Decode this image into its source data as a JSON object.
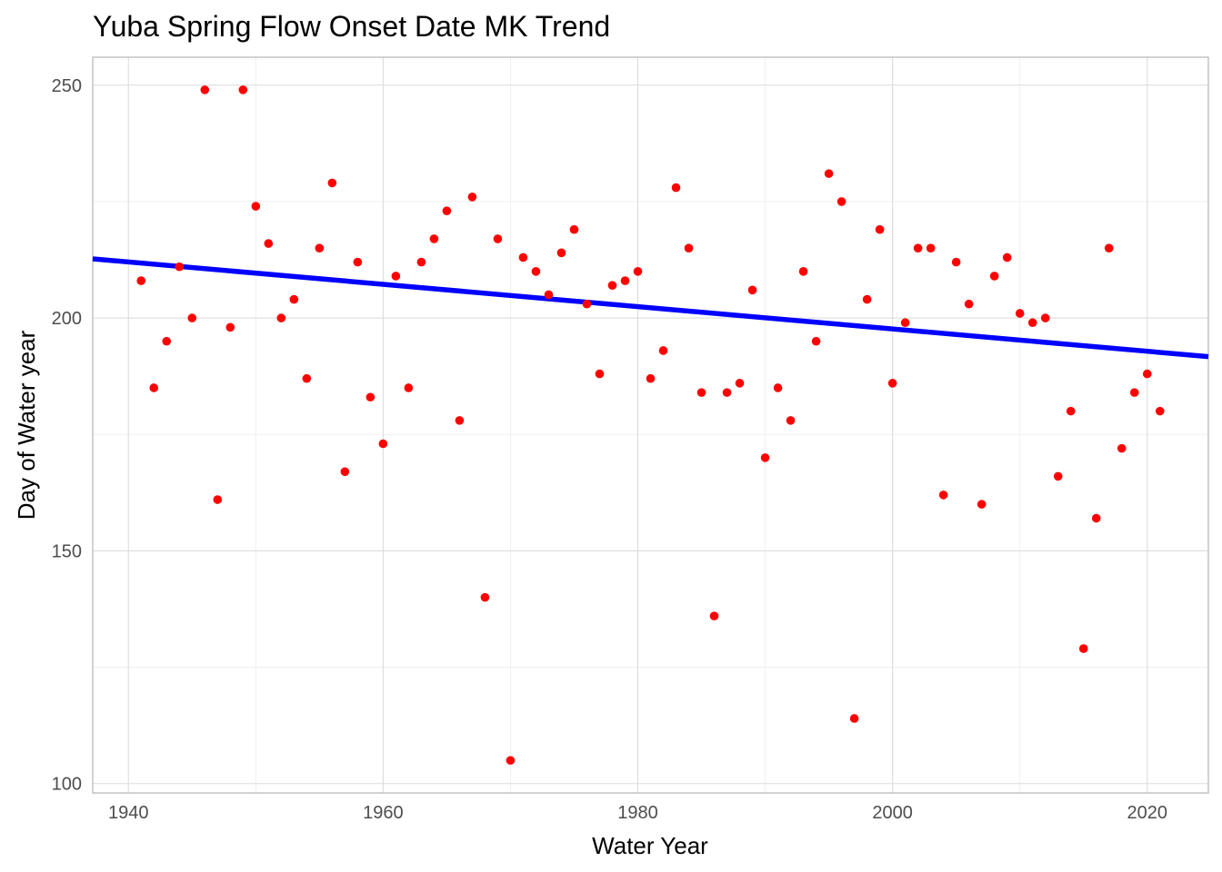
{
  "chart_data": {
    "type": "scatter",
    "title": "Yuba Spring Flow Onset Date MK Trend",
    "xlabel": "Water Year",
    "ylabel": "Day of Water year",
    "xlim": [
      1937.2,
      2024.8
    ],
    "ylim": [
      98,
      256
    ],
    "x_ticks": [
      1940,
      1960,
      1980,
      2000,
      2020
    ],
    "y_ticks": [
      100,
      150,
      200,
      250
    ],
    "grid": true,
    "point_color": "#ff0000",
    "trend_color": "#0000ff",
    "points": [
      {
        "x": 1941,
        "y": 208
      },
      {
        "x": 1942,
        "y": 185
      },
      {
        "x": 1943,
        "y": 195
      },
      {
        "x": 1944,
        "y": 211
      },
      {
        "x": 1945,
        "y": 200
      },
      {
        "x": 1946,
        "y": 249
      },
      {
        "x": 1947,
        "y": 161
      },
      {
        "x": 1948,
        "y": 198
      },
      {
        "x": 1949,
        "y": 249
      },
      {
        "x": 1950,
        "y": 224
      },
      {
        "x": 1951,
        "y": 216
      },
      {
        "x": 1952,
        "y": 200
      },
      {
        "x": 1953,
        "y": 204
      },
      {
        "x": 1954,
        "y": 187
      },
      {
        "x": 1955,
        "y": 215
      },
      {
        "x": 1956,
        "y": 229
      },
      {
        "x": 1957,
        "y": 167
      },
      {
        "x": 1958,
        "y": 212
      },
      {
        "x": 1959,
        "y": 183
      },
      {
        "x": 1960,
        "y": 173
      },
      {
        "x": 1961,
        "y": 209
      },
      {
        "x": 1962,
        "y": 185
      },
      {
        "x": 1963,
        "y": 212
      },
      {
        "x": 1964,
        "y": 217
      },
      {
        "x": 1965,
        "y": 223
      },
      {
        "x": 1966,
        "y": 178
      },
      {
        "x": 1967,
        "y": 226
      },
      {
        "x": 1968,
        "y": 140
      },
      {
        "x": 1969,
        "y": 217
      },
      {
        "x": 1970,
        "y": 105
      },
      {
        "x": 1971,
        "y": 213
      },
      {
        "x": 1972,
        "y": 210
      },
      {
        "x": 1973,
        "y": 205
      },
      {
        "x": 1974,
        "y": 214
      },
      {
        "x": 1975,
        "y": 219
      },
      {
        "x": 1976,
        "y": 203
      },
      {
        "x": 1977,
        "y": 188
      },
      {
        "x": 1978,
        "y": 207
      },
      {
        "x": 1979,
        "y": 208
      },
      {
        "x": 1980,
        "y": 210
      },
      {
        "x": 1981,
        "y": 187
      },
      {
        "x": 1982,
        "y": 193
      },
      {
        "x": 1983,
        "y": 228
      },
      {
        "x": 1984,
        "y": 215
      },
      {
        "x": 1985,
        "y": 184
      },
      {
        "x": 1986,
        "y": 136
      },
      {
        "x": 1987,
        "y": 184
      },
      {
        "x": 1988,
        "y": 186
      },
      {
        "x": 1989,
        "y": 206
      },
      {
        "x": 1990,
        "y": 170
      },
      {
        "x": 1991,
        "y": 185
      },
      {
        "x": 1992,
        "y": 178
      },
      {
        "x": 1993,
        "y": 210
      },
      {
        "x": 1994,
        "y": 195
      },
      {
        "x": 1995,
        "y": 231
      },
      {
        "x": 1996,
        "y": 225
      },
      {
        "x": 1997,
        "y": 114
      },
      {
        "x": 1998,
        "y": 204
      },
      {
        "x": 1999,
        "y": 219
      },
      {
        "x": 2000,
        "y": 186
      },
      {
        "x": 2001,
        "y": 199
      },
      {
        "x": 2002,
        "y": 215
      },
      {
        "x": 2003,
        "y": 215
      },
      {
        "x": 2004,
        "y": 162
      },
      {
        "x": 2005,
        "y": 212
      },
      {
        "x": 2006,
        "y": 203
      },
      {
        "x": 2007,
        "y": 160
      },
      {
        "x": 2008,
        "y": 209
      },
      {
        "x": 2009,
        "y": 213
      },
      {
        "x": 2010,
        "y": 201
      },
      {
        "x": 2011,
        "y": 199
      },
      {
        "x": 2012,
        "y": 200
      },
      {
        "x": 2013,
        "y": 166
      },
      {
        "x": 2014,
        "y": 180
      },
      {
        "x": 2015,
        "y": 129
      },
      {
        "x": 2016,
        "y": 157
      },
      {
        "x": 2017,
        "y": 215
      },
      {
        "x": 2018,
        "y": 172
      },
      {
        "x": 2019,
        "y": 184
      },
      {
        "x": 2020,
        "y": 188
      },
      {
        "x": 2021,
        "y": 180
      }
    ],
    "trend_line": {
      "x": [
        1937.2,
        2024.8
      ],
      "y": [
        212.7,
        191.7
      ]
    }
  }
}
